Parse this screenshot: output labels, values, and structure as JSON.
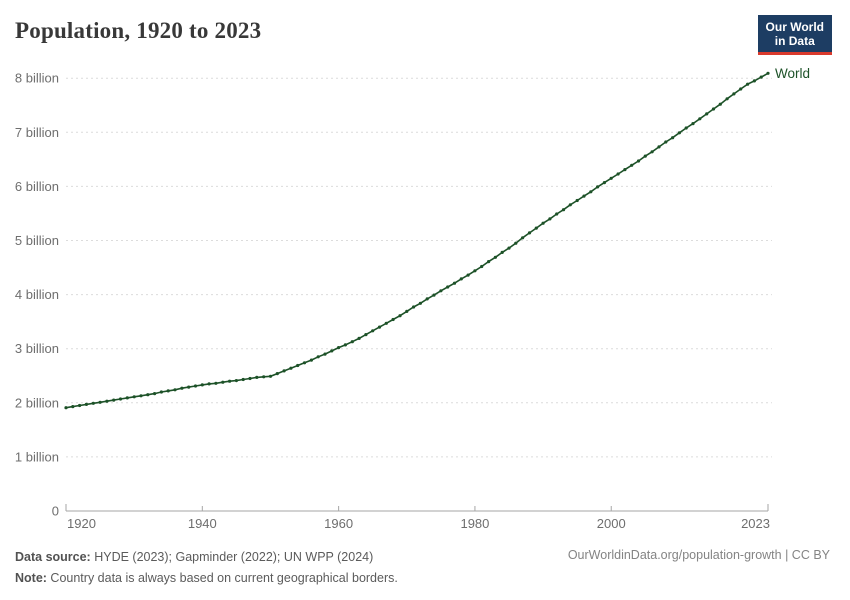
{
  "header": {
    "title": "Population, 1920 to 2023",
    "logo": {
      "line1": "Our World",
      "line2": "in Data",
      "bg_color": "#1d3d63",
      "bar_color": "#d93a2d"
    }
  },
  "chart_data": {
    "type": "line",
    "title": "Population, 1920 to 2023",
    "xlabel": "",
    "ylabel": "",
    "grid": "dashed-horizontal",
    "legend_position": "end-of-line-label",
    "xlim": [
      1920,
      2023
    ],
    "ylim": [
      0,
      8.3
    ],
    "xticks": [
      1920,
      1940,
      1960,
      1980,
      2000,
      2023
    ],
    "xtick_labels": [
      "1920",
      "1940",
      "1960",
      "1980",
      "2000",
      "2023"
    ],
    "yticks": [
      0,
      1,
      2,
      3,
      4,
      5,
      6,
      7,
      8
    ],
    "ytick_labels": [
      "0",
      "1 billion",
      "2 billion",
      "3 billion",
      "4 billion",
      "5 billion",
      "6 billion",
      "7 billion",
      "8 billion"
    ],
    "x": [
      1920,
      1921,
      1922,
      1923,
      1924,
      1925,
      1926,
      1927,
      1928,
      1929,
      1930,
      1931,
      1932,
      1933,
      1934,
      1935,
      1936,
      1937,
      1938,
      1939,
      1940,
      1941,
      1942,
      1943,
      1944,
      1945,
      1946,
      1947,
      1948,
      1949,
      1950,
      1951,
      1952,
      1953,
      1954,
      1955,
      1956,
      1957,
      1958,
      1959,
      1960,
      1961,
      1962,
      1963,
      1964,
      1965,
      1966,
      1967,
      1968,
      1969,
      1970,
      1971,
      1972,
      1973,
      1974,
      1975,
      1976,
      1977,
      1978,
      1979,
      1980,
      1981,
      1982,
      1983,
      1984,
      1985,
      1986,
      1987,
      1988,
      1989,
      1990,
      1991,
      1992,
      1993,
      1994,
      1995,
      1996,
      1997,
      1998,
      1999,
      2000,
      2001,
      2002,
      2003,
      2004,
      2005,
      2006,
      2007,
      2008,
      2009,
      2010,
      2011,
      2012,
      2013,
      2014,
      2015,
      2016,
      2017,
      2018,
      2019,
      2020,
      2021,
      2022,
      2023
    ],
    "series": [
      {
        "name": "World",
        "unit": "billion",
        "color": "#1d5228",
        "values": [
          1.91,
          1.93,
          1.95,
          1.97,
          1.99,
          2.01,
          2.03,
          2.05,
          2.07,
          2.09,
          2.11,
          2.13,
          2.15,
          2.17,
          2.2,
          2.22,
          2.24,
          2.27,
          2.29,
          2.31,
          2.33,
          2.35,
          2.36,
          2.38,
          2.4,
          2.41,
          2.43,
          2.45,
          2.47,
          2.48,
          2.49,
          2.54,
          2.59,
          2.64,
          2.69,
          2.74,
          2.79,
          2.85,
          2.9,
          2.96,
          3.02,
          3.07,
          3.13,
          3.19,
          3.26,
          3.33,
          3.4,
          3.47,
          3.54,
          3.61,
          3.69,
          3.77,
          3.84,
          3.92,
          3.99,
          4.07,
          4.14,
          4.21,
          4.29,
          4.36,
          4.44,
          4.52,
          4.61,
          4.69,
          4.78,
          4.86,
          4.95,
          5.05,
          5.14,
          5.23,
          5.32,
          5.4,
          5.49,
          5.57,
          5.66,
          5.74,
          5.82,
          5.9,
          5.99,
          6.07,
          6.15,
          6.23,
          6.31,
          6.39,
          6.47,
          6.56,
          6.64,
          6.73,
          6.82,
          6.9,
          6.99,
          7.08,
          7.16,
          7.25,
          7.34,
          7.43,
          7.52,
          7.62,
          7.71,
          7.8,
          7.89,
          7.95,
          8.02,
          8.09
        ]
      }
    ],
    "colors": {
      "gridline": "#dcdcdc",
      "axis": "#a6a6a6",
      "tick_label": "#6e6e6e"
    }
  },
  "footer": {
    "source_label": "Data source:",
    "source_text": " HYDE (2023); Gapminder (2022); UN WPP (2024)",
    "note_label": "Note:",
    "note_text": " Country data is always based on current geographical borders.",
    "link_text": "OurWorldinData.org/population-growth | CC BY"
  }
}
